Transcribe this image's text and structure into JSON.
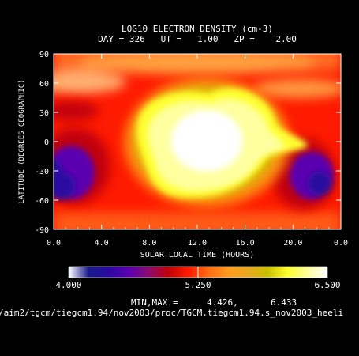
{
  "chart_data": {
    "type": "heatmap",
    "title": "LOG10 ELECTRON DENSITY (cm-3)",
    "subtitle": "DAY = 326   UT =   1.00   ZP =    2.00",
    "xlabel": "SOLAR LOCAL TIME (HOURS)",
    "ylabel": "LATITUDE (DEGREES GEOGRAPHIC)",
    "xlim": [
      0.0,
      24.0
    ],
    "ylim": [
      -90,
      90
    ],
    "x_ticks": [
      "0.0",
      "4.0",
      "8.0",
      "12.0",
      "16.0",
      "20.0",
      "0.0"
    ],
    "y_ticks": [
      "90",
      "60",
      "30",
      "0",
      "-30",
      "-60",
      "-90"
    ],
    "colorbar": {
      "min": 4.0,
      "max": 6.5,
      "tick_labels": [
        "4.000",
        "5.250",
        "6.500"
      ],
      "colors": [
        "#ffffff",
        "#1a1a8c",
        "#2a0aa0",
        "#5a00b0",
        "#8a0a70",
        "#c0000a",
        "#ff1a00",
        "#ff6a10",
        "#ff9a20",
        "#e8a820",
        "#c8c000",
        "#ffff30",
        "#ffffa0",
        "#ffffff"
      ]
    },
    "minmax_label": "MIN,MAX =",
    "min_value": "4.426,",
    "max_value": "6.433",
    "features": [
      {
        "region": "dayside crest",
        "x": 12.0,
        "y": 10,
        "value": 6.43
      },
      {
        "region": "pre-dawn trough south",
        "x": 2.0,
        "y": -45,
        "value": 4.43
      },
      {
        "region": "post-sunset trough south",
        "x": 22.0,
        "y": -40,
        "value": 4.5
      },
      {
        "region": "high-latitude band",
        "x": 12.0,
        "y": 75,
        "value": 5.1
      }
    ]
  },
  "footer_path": "/aim2/tgcm/tiegcm1.94/nov2003/proc/TGCM.tiegcm1.94.s_nov2003_heeli"
}
